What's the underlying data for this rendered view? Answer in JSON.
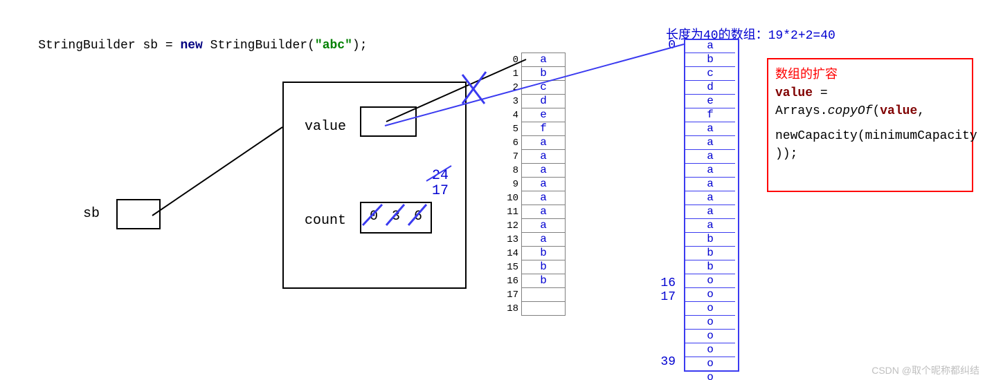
{
  "colors": {
    "blue": "#0000d0",
    "blue_line": "#3a3af0",
    "black": "#000000",
    "gray_cell_border": "#7f7f7f",
    "red": "#ff0000",
    "maroon": "#800000",
    "navy": "#000080",
    "green": "#008000",
    "watermark": "#bfbfbf"
  },
  "code": {
    "t1": "StringBuilder sb = ",
    "kw_new": "new",
    "t2": " StringBuilder(",
    "str": "\"abc\"",
    "t3": ");"
  },
  "sb": {
    "label": "sb"
  },
  "obj": {
    "field_value": "value",
    "field_count": "count",
    "count_old1": "0",
    "count_old2": "3",
    "count_old3": "6",
    "count_new_24": "24",
    "count_new_17": "17"
  },
  "array19": {
    "indices": [
      "0",
      "1",
      "2",
      "3",
      "4",
      "5",
      "6",
      "7",
      "8",
      "9",
      "10",
      "11",
      "12",
      "13",
      "14",
      "15",
      "16",
      "17",
      "18"
    ],
    "values": [
      "a",
      "b",
      "c",
      "d",
      "e",
      "f",
      "a",
      "a",
      "a",
      "a",
      "a",
      "a",
      "a",
      "a",
      "b",
      "b",
      "b",
      "",
      ""
    ]
  },
  "array40": {
    "title_a": "长度为40的数组：",
    "title_b": "19*2+2=40",
    "idx_0": "0",
    "idx_16": "16",
    "idx_17": "17",
    "idx_39": "39",
    "values": [
      "a",
      "b",
      "c",
      "d",
      "e",
      "f",
      "a",
      "a",
      "a",
      "a",
      "a",
      "a",
      "a",
      "a",
      "b",
      "b",
      "b",
      "o",
      "o",
      "o",
      "o",
      "o",
      "o",
      "o",
      "o"
    ]
  },
  "expand": {
    "hd": "数组的扩容",
    "l1a": "value",
    "l1b": " =",
    "l2a": "Arrays.",
    "l2b": "copyOf",
    "l2c": "(",
    "l2d": "value",
    "l2e": ",",
    "l3": "newCapacity(minimumCapacity",
    "l4": "));"
  },
  "watermark": "CSDN @取个昵称都纠结"
}
